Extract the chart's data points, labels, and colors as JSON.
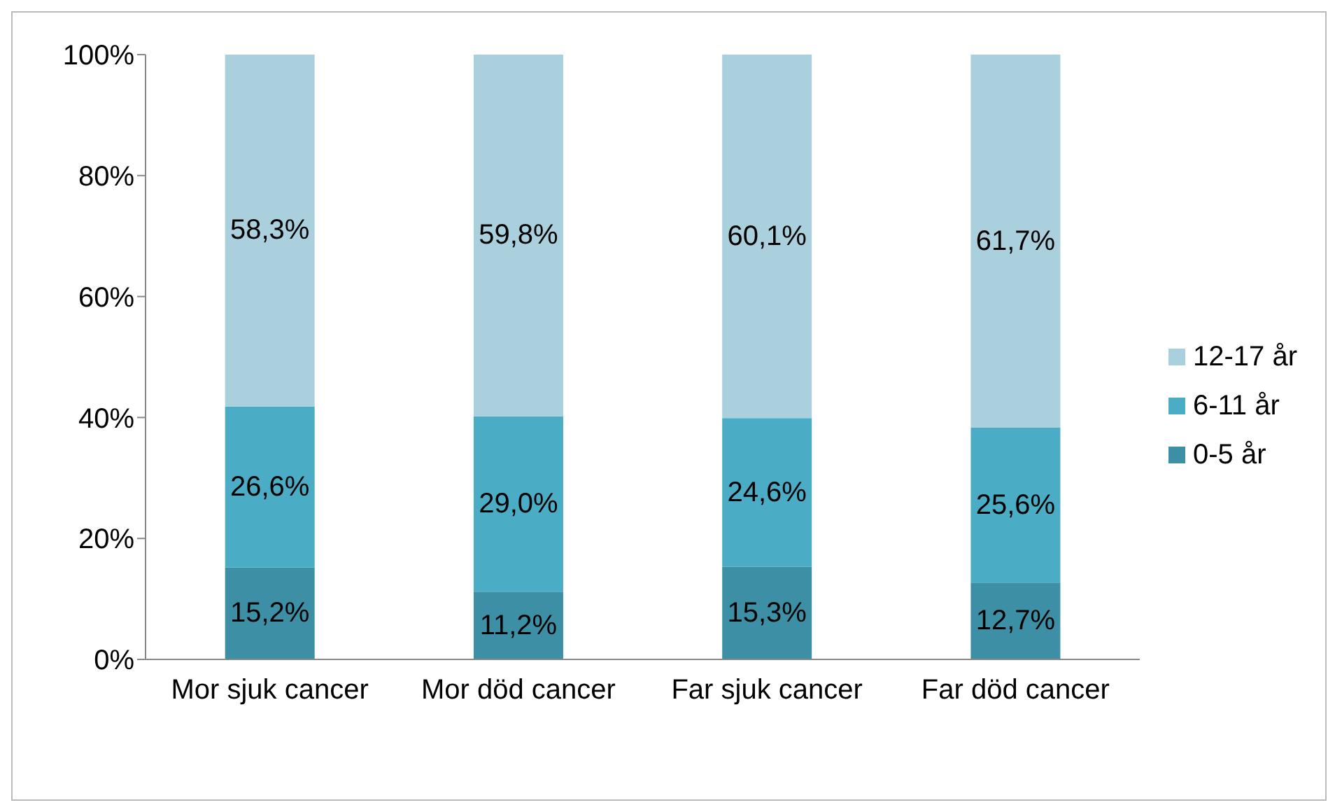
{
  "chart_data": {
    "type": "bar",
    "stacked": true,
    "categories": [
      "Mor sjuk cancer",
      "Mor död cancer",
      "Far sjuk cancer",
      "Far död cancer"
    ],
    "series": [
      {
        "name": "0-5 år",
        "color": "#3c8fa5",
        "values": [
          15.2,
          11.2,
          15.3,
          12.7
        ],
        "value_labels": [
          "15,2%",
          "11,2%",
          "15,3%",
          "12,7%"
        ]
      },
      {
        "name": "6-11 år",
        "color": "#4bacc6",
        "values": [
          26.6,
          29.0,
          24.6,
          25.6
        ],
        "value_labels": [
          "26,6%",
          "29,0%",
          "24,6%",
          "25,6%"
        ]
      },
      {
        "name": "12-17 år",
        "color": "#a9d0dc",
        "values": [
          58.3,
          59.8,
          60.1,
          61.7
        ],
        "value_labels": [
          "58,3%",
          "59,8%",
          "60,1%",
          "61,7%"
        ]
      }
    ],
    "ylim": [
      0,
      100
    ],
    "yticks": [
      {
        "value": 0,
        "label": "0%"
      },
      {
        "value": 20,
        "label": "20%"
      },
      {
        "value": 40,
        "label": "40%"
      },
      {
        "value": 60,
        "label": "60%"
      },
      {
        "value": 80,
        "label": "80%"
      },
      {
        "value": 100,
        "label": "100%"
      }
    ],
    "grid": false,
    "legend": "right"
  }
}
